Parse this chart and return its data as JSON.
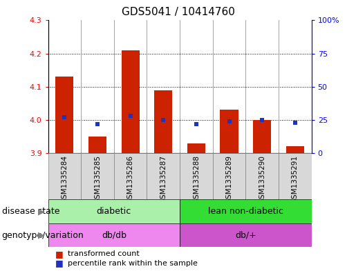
{
  "title": "GDS5041 / 10414760",
  "samples": [
    "GSM1335284",
    "GSM1335285",
    "GSM1335286",
    "GSM1335287",
    "GSM1335288",
    "GSM1335289",
    "GSM1335290",
    "GSM1335291"
  ],
  "transformed_count": [
    4.13,
    3.95,
    4.21,
    4.09,
    3.93,
    4.03,
    4.0,
    3.92
  ],
  "percentile_rank": [
    27,
    22,
    28,
    25,
    22,
    24,
    25,
    23
  ],
  "ylim_left": [
    3.9,
    4.3
  ],
  "ylim_right": [
    0,
    100
  ],
  "yticks_left": [
    3.9,
    4.0,
    4.1,
    4.2,
    4.3
  ],
  "yticks_right": [
    0,
    25,
    50,
    75,
    100
  ],
  "ytick_labels_right": [
    "0",
    "25",
    "50",
    "75",
    "100%"
  ],
  "bar_color": "#cc2200",
  "dot_color": "#2233bb",
  "bar_bottom": 3.9,
  "disease_state_groups": [
    {
      "label": "diabetic",
      "start": 0,
      "end": 4,
      "color": "#aaf0aa"
    },
    {
      "label": "lean non-diabetic",
      "start": 4,
      "end": 8,
      "color": "#33dd33"
    }
  ],
  "genotype_groups": [
    {
      "label": "db/db",
      "start": 0,
      "end": 4,
      "color": "#ee88ee"
    },
    {
      "label": "db/+",
      "start": 4,
      "end": 8,
      "color": "#cc55cc"
    }
  ],
  "disease_state_label": "disease state",
  "genotype_label": "genotype/variation",
  "legend_transformed": "transformed count",
  "legend_percentile": "percentile rank within the sample",
  "grid_dotted_at": [
    4.0,
    4.1,
    4.2
  ],
  "col_bg_color": "#d8d8d8",
  "plot_bg_color": "#ffffff",
  "title_fontsize": 11,
  "axis_tick_fontsize": 8,
  "sample_label_fontsize": 7.5,
  "panel_label_fontsize": 9,
  "legend_fontsize": 8
}
